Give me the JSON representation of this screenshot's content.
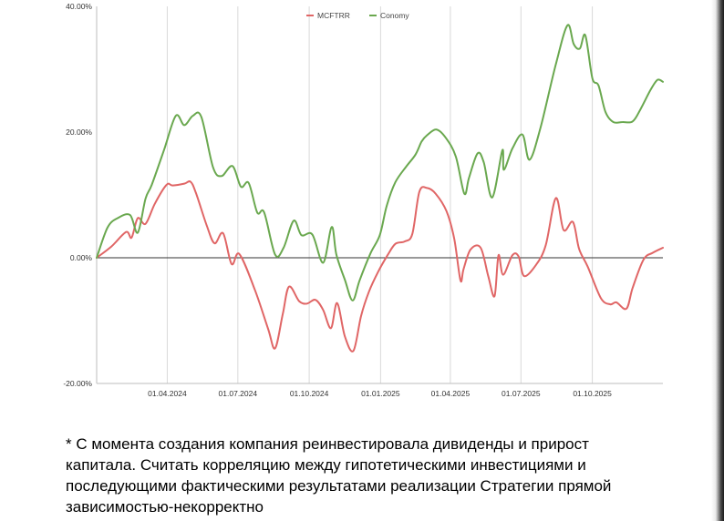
{
  "footnote": "* С момента создания компания реинвестировала дивиденды и прирост\nкапитала. Считать корреляцию между гипотетическими инвестициями и\nпоследующими фактическими результатами реализации Стратегии прямой\nзависимостью-некорректно",
  "chart_data": {
    "type": "line",
    "title": "",
    "xlabel": "",
    "ylabel": "",
    "legend_position": "top-center",
    "grid": "vertical",
    "ylim": [
      -20,
      40
    ],
    "y_ticks": [
      "40.00%",
      "20.00%",
      "0.00%",
      "-20.00%"
    ],
    "x_range": [
      "2024-01-01",
      "2025-12-31"
    ],
    "x_ticks": [
      {
        "date": "2024-04-01",
        "label": "01.04.2024"
      },
      {
        "date": "2024-07-01",
        "label": "01.07.2024"
      },
      {
        "date": "2024-10-01",
        "label": "01.10.2024"
      },
      {
        "date": "2025-01-01",
        "label": "01.01.2025"
      },
      {
        "date": "2025-04-01",
        "label": "01.04.2025"
      },
      {
        "date": "2025-07-01",
        "label": "01.07.2025"
      },
      {
        "date": "2025-10-01",
        "label": "01.10.2025"
      }
    ],
    "series": [
      {
        "name": "MCFTRR",
        "color": "#e06666",
        "points": [
          [
            "2024-01-01",
            0
          ],
          [
            "2024-01-20",
            1.8
          ],
          [
            "2024-02-08",
            4.1
          ],
          [
            "2024-02-15",
            3.2
          ],
          [
            "2024-02-23",
            6.3
          ],
          [
            "2024-03-04",
            5.4
          ],
          [
            "2024-03-16",
            8.6
          ],
          [
            "2024-03-31",
            11.6
          ],
          [
            "2024-04-08",
            11.5
          ],
          [
            "2024-04-23",
            11.8
          ],
          [
            "2024-05-01",
            12.1
          ],
          [
            "2024-05-08",
            10.3
          ],
          [
            "2024-05-22",
            5.1
          ],
          [
            "2024-06-01",
            2.3
          ],
          [
            "2024-06-12",
            3.9
          ],
          [
            "2024-06-23",
            -1.0
          ],
          [
            "2024-07-03",
            0.6
          ],
          [
            "2024-07-23",
            -5.1
          ],
          [
            "2024-08-09",
            -11.3
          ],
          [
            "2024-08-18",
            -14.4
          ],
          [
            "2024-08-28",
            -8.9
          ],
          [
            "2024-09-05",
            -4.6
          ],
          [
            "2024-09-18",
            -6.9
          ],
          [
            "2024-09-28",
            -7.3
          ],
          [
            "2024-10-09",
            -6.7
          ],
          [
            "2024-10-19",
            -8.3
          ],
          [
            "2024-10-29",
            -11.2
          ],
          [
            "2024-11-06",
            -7.2
          ],
          [
            "2024-11-16",
            -12.5
          ],
          [
            "2024-11-27",
            -14.8
          ],
          [
            "2024-12-07",
            -9.2
          ],
          [
            "2024-12-17",
            -5.4
          ],
          [
            "2024-12-29",
            -2.2
          ],
          [
            "2025-01-10",
            0.4
          ],
          [
            "2025-01-20",
            2.2
          ],
          [
            "2025-02-01",
            2.6
          ],
          [
            "2025-02-11",
            3.8
          ],
          [
            "2025-02-20",
            10.5
          ],
          [
            "2025-03-02",
            11.1
          ],
          [
            "2025-03-13",
            10.2
          ],
          [
            "2025-03-27",
            7.4
          ],
          [
            "2025-04-06",
            3.0
          ],
          [
            "2025-04-14",
            -3.6
          ],
          [
            "2025-04-18",
            -1.8
          ],
          [
            "2025-04-27",
            1.3
          ],
          [
            "2025-05-10",
            1.6
          ],
          [
            "2025-05-20",
            -3.0
          ],
          [
            "2025-05-28",
            -6.1
          ],
          [
            "2025-06-02",
            0.4
          ],
          [
            "2025-06-08",
            -2.7
          ],
          [
            "2025-06-20",
            0.4
          ],
          [
            "2025-06-28",
            0.2
          ],
          [
            "2025-07-05",
            -2.9
          ],
          [
            "2025-07-20",
            -1.2
          ],
          [
            "2025-08-02",
            2.0
          ],
          [
            "2025-08-15",
            9.5
          ],
          [
            "2025-08-25",
            4.4
          ],
          [
            "2025-09-06",
            5.7
          ],
          [
            "2025-09-14",
            1.4
          ],
          [
            "2025-09-25",
            -1.4
          ],
          [
            "2025-10-12",
            -6.4
          ],
          [
            "2025-10-24",
            -7.4
          ],
          [
            "2025-11-01",
            -7.1
          ],
          [
            "2025-11-14",
            -8.1
          ],
          [
            "2025-11-22",
            -4.8
          ],
          [
            "2025-12-06",
            -0.3
          ],
          [
            "2025-12-18",
            0.8
          ],
          [
            "2025-12-31",
            1.6
          ]
        ]
      },
      {
        "name": "Conomy",
        "color": "#6aa84f",
        "points": [
          [
            "2024-01-01",
            0
          ],
          [
            "2024-01-15",
            4.8
          ],
          [
            "2024-01-28",
            6.3
          ],
          [
            "2024-02-13",
            6.8
          ],
          [
            "2024-02-23",
            4.0
          ],
          [
            "2024-03-04",
            9.4
          ],
          [
            "2024-03-12",
            11.6
          ],
          [
            "2024-03-28",
            17.2
          ],
          [
            "2024-04-12",
            22.6
          ],
          [
            "2024-04-23",
            21.1
          ],
          [
            "2024-05-04",
            22.6
          ],
          [
            "2024-05-15",
            22.4
          ],
          [
            "2024-05-30",
            14.4
          ],
          [
            "2024-06-10",
            13.0
          ],
          [
            "2024-06-24",
            14.6
          ],
          [
            "2024-07-05",
            11.3
          ],
          [
            "2024-07-15",
            11.9
          ],
          [
            "2024-07-26",
            7.2
          ],
          [
            "2024-08-04",
            7.2
          ],
          [
            "2024-08-18",
            0.5
          ],
          [
            "2024-08-29",
            1.6
          ],
          [
            "2024-09-11",
            5.9
          ],
          [
            "2024-09-21",
            3.6
          ],
          [
            "2024-10-05",
            3.7
          ],
          [
            "2024-10-19",
            -0.8
          ],
          [
            "2024-10-30",
            4.9
          ],
          [
            "2024-11-05",
            0.5
          ],
          [
            "2024-11-16",
            -3.5
          ],
          [
            "2024-11-26",
            -6.8
          ],
          [
            "2024-12-05",
            -3.6
          ],
          [
            "2024-12-19",
            0.7
          ],
          [
            "2024-12-31",
            3.6
          ],
          [
            "2025-01-09",
            8.3
          ],
          [
            "2025-01-20",
            12.0
          ],
          [
            "2025-02-03",
            14.5
          ],
          [
            "2025-02-15",
            16.4
          ],
          [
            "2025-02-23",
            18.5
          ],
          [
            "2025-03-02",
            19.5
          ],
          [
            "2025-03-14",
            20.4
          ],
          [
            "2025-03-26",
            19.1
          ],
          [
            "2025-04-08",
            16.1
          ],
          [
            "2025-04-19",
            10.2
          ],
          [
            "2025-04-25",
            12.7
          ],
          [
            "2025-05-06",
            16.6
          ],
          [
            "2025-05-14",
            15.2
          ],
          [
            "2025-05-25",
            9.6
          ],
          [
            "2025-06-07",
            17.1
          ],
          [
            "2025-06-09",
            14.0
          ],
          [
            "2025-06-20",
            17.4
          ],
          [
            "2025-07-03",
            19.6
          ],
          [
            "2025-07-12",
            15.6
          ],
          [
            "2025-07-26",
            20.6
          ],
          [
            "2025-08-15",
            30.8
          ],
          [
            "2025-08-30",
            37.0
          ],
          [
            "2025-09-07",
            34.0
          ],
          [
            "2025-09-15",
            33.3
          ],
          [
            "2025-09-22",
            35.4
          ],
          [
            "2025-10-01",
            28.6
          ],
          [
            "2025-10-09",
            27.4
          ],
          [
            "2025-10-18",
            23.2
          ],
          [
            "2025-10-28",
            21.6
          ],
          [
            "2025-11-09",
            21.6
          ],
          [
            "2025-11-22",
            21.7
          ],
          [
            "2025-12-02",
            23.6
          ],
          [
            "2025-12-15",
            26.7
          ],
          [
            "2025-12-24",
            28.3
          ],
          [
            "2025-12-31",
            28.0
          ]
        ]
      }
    ]
  }
}
